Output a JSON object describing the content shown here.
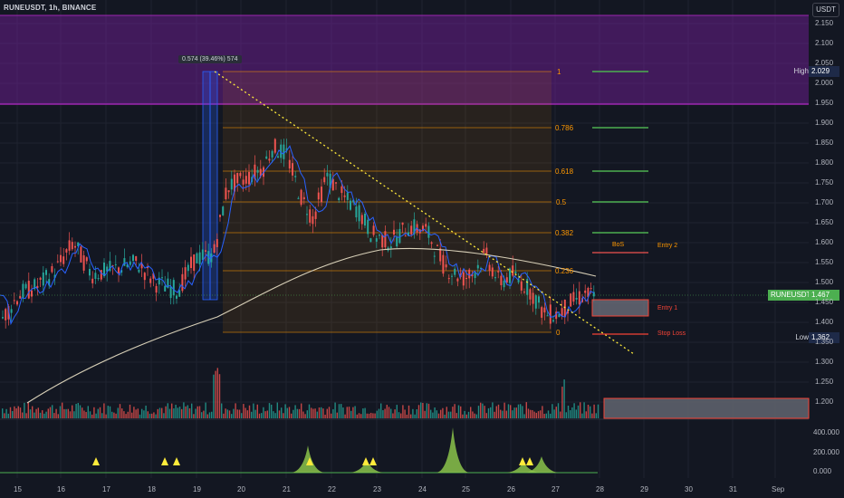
{
  "header": {
    "title": "RUNEUSDT, 1h, BINANCE",
    "currency": "USDT"
  },
  "measure_label": "0.574 (39.46%) 574",
  "fib_levels": [
    {
      "label": "1",
      "value": 2.029
    },
    {
      "label": "0.786",
      "value": 1.906
    },
    {
      "label": "0.618",
      "value": 1.81
    },
    {
      "label": "0.5",
      "value": 1.742
    },
    {
      "label": "0.382",
      "value": 1.674
    },
    {
      "label": "0.236",
      "value": 1.591
    },
    {
      "label": "0",
      "value": 1.455
    }
  ],
  "annotations": {
    "bos": "BoS",
    "entry2": "Entry 2",
    "entry1": "Entry 1",
    "stop_loss": "Stop Loss"
  },
  "price_tags": {
    "high": {
      "label": "High",
      "value": "2.029"
    },
    "current": {
      "label": "RUNEUSDT",
      "value": "1.467"
    },
    "low": {
      "label": "Low",
      "value": "1.362"
    }
  },
  "price_axis": [
    "2.150",
    "2.100",
    "2.050",
    "2.000",
    "1.950",
    "1.900",
    "1.850",
    "1.800",
    "1.750",
    "1.700",
    "1.650",
    "1.600",
    "1.550",
    "1.500",
    "1.450",
    "1.400",
    "1.350",
    "1.300",
    "1.250",
    "1.200"
  ],
  "indicator_axis": [
    "400.000",
    "200.000",
    "0.000"
  ],
  "time_axis": [
    "15",
    "16",
    "17",
    "18",
    "19",
    "20",
    "21",
    "22",
    "23",
    "24",
    "25",
    "26",
    "27",
    "28",
    "29",
    "30",
    "31",
    "Sep"
  ],
  "colors": {
    "up": "#26a69a",
    "down": "#ef5350",
    "purple_zone": "#7b1fa2",
    "fib": "#ff9800",
    "ma": "#d8d0b8",
    "blue": "#2962ff",
    "green": "#4caf50",
    "yellow": "#ffeb3b"
  }
}
